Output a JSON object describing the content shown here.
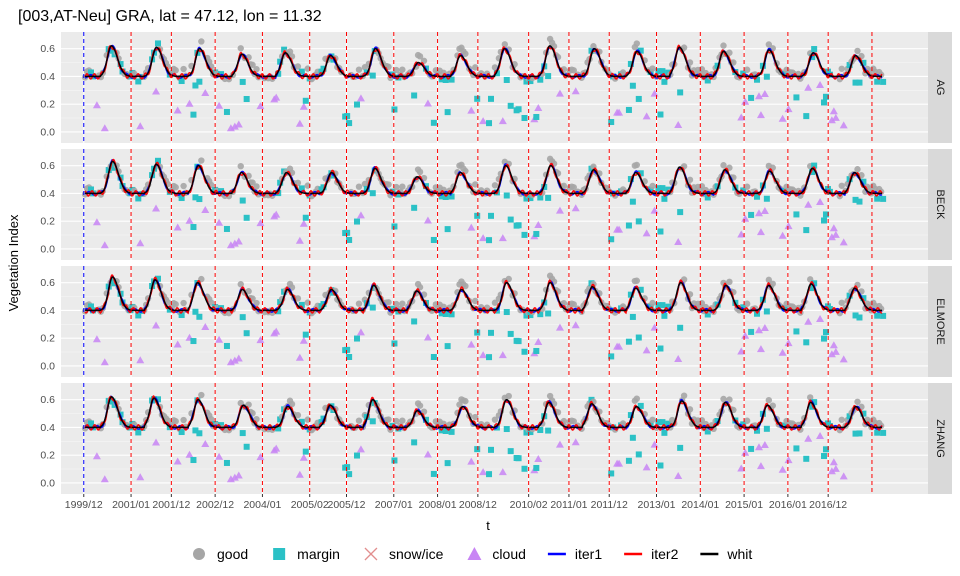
{
  "chart_data": {
    "type": "line",
    "title": "[003,AT-Neu] GRA, lat = 47.12, lon =  11.32",
    "xlabel": "t",
    "ylabel": "Vegetation Index",
    "ylim": [
      -0.08,
      0.72
    ],
    "xlim": [
      1999.4,
      2019.2
    ],
    "y_ticks": [
      0.0,
      0.2,
      0.4,
      0.6
    ],
    "y_tick_labels": [
      "0.0",
      "0.2",
      "0.4",
      "0.6"
    ],
    "x_ticks": [
      1999.92,
      2001.0,
      2001.92,
      2002.92,
      2004.0,
      2005.08,
      2005.92,
      2007.0,
      2008.0,
      2008.92,
      2010.08,
      2011.0,
      2011.92,
      2013.0,
      2014.0,
      2015.0,
      2016.0,
      2016.92
    ],
    "x_tick_labels": [
      "1999/12",
      "2001/01",
      "2001/12",
      "2002/12",
      "2004/01",
      "2005/02",
      "2005/12",
      "2007/01",
      "2008/01",
      "2008/12",
      "2010/02",
      "2011/01",
      "2011/12",
      "2013/01",
      "2014/01",
      "2015/01",
      "2016/01",
      "2016/12"
    ],
    "breakpoints": [
      1999.92,
      2001.0,
      2001.92,
      2002.92,
      2004.0,
      2005.08,
      2005.92,
      2007.0,
      2008.0,
      2008.92,
      2010.08,
      2011.0,
      2011.92,
      2013.0,
      2014.0,
      2015.0,
      2016.0,
      2016.92,
      2017.92
    ],
    "breakpoint_colors": [
      "#0000ff",
      "#ff0000"
    ],
    "years": [
      2000,
      2001,
      2002,
      2003,
      2004,
      2005,
      2006,
      2007,
      2008,
      2009,
      2010,
      2011,
      2012,
      2013,
      2014,
      2015,
      2016,
      2017,
      2018
    ],
    "baseline": 0.4,
    "panels": [
      {
        "name": "AG",
        "peaks": [
          0.62,
          0.61,
          0.6,
          0.56,
          0.57,
          0.55,
          0.6,
          0.5,
          0.55,
          0.6,
          0.62,
          0.6,
          0.58,
          0.61,
          0.58,
          0.59,
          0.57,
          0.55,
          0.52
        ]
      },
      {
        "name": "BECK",
        "peaks": [
          0.63,
          0.61,
          0.6,
          0.55,
          0.55,
          0.55,
          0.58,
          0.52,
          0.55,
          0.6,
          0.6,
          0.57,
          0.55,
          0.59,
          0.57,
          0.56,
          0.58,
          0.55,
          0.54
        ]
      },
      {
        "name": "ELMORE",
        "peaks": [
          0.64,
          0.62,
          0.6,
          0.55,
          0.55,
          0.55,
          0.58,
          0.54,
          0.55,
          0.6,
          0.6,
          0.57,
          0.56,
          0.6,
          0.58,
          0.58,
          0.59,
          0.56,
          0.55
        ]
      },
      {
        "name": "ZHANG",
        "peaks": [
          0.62,
          0.61,
          0.6,
          0.56,
          0.55,
          0.56,
          0.6,
          0.52,
          0.55,
          0.6,
          0.58,
          0.57,
          0.55,
          0.59,
          0.58,
          0.56,
          0.58,
          0.55,
          0.54
        ]
      }
    ],
    "legend": [
      {
        "key": "good",
        "label": "good",
        "color": "#a6a6a6",
        "shape": "circle"
      },
      {
        "key": "margin",
        "label": "margin",
        "color": "#2bc1c6",
        "shape": "square"
      },
      {
        "key": "snow",
        "label": "snow/ice",
        "color": "#e28e8e",
        "shape": "cross"
      },
      {
        "key": "cloud",
        "label": "cloud",
        "color": "#c885f4",
        "shape": "triangle"
      },
      {
        "key": "iter1",
        "label": "iter1",
        "color": "#0000ff",
        "shape": "line"
      },
      {
        "key": "iter2",
        "label": "iter2",
        "color": "#ff0000",
        "shape": "line"
      },
      {
        "key": "whit",
        "label": "whit",
        "color": "#000000",
        "shape": "line"
      }
    ],
    "legend_position": "bottom",
    "grid": true
  }
}
